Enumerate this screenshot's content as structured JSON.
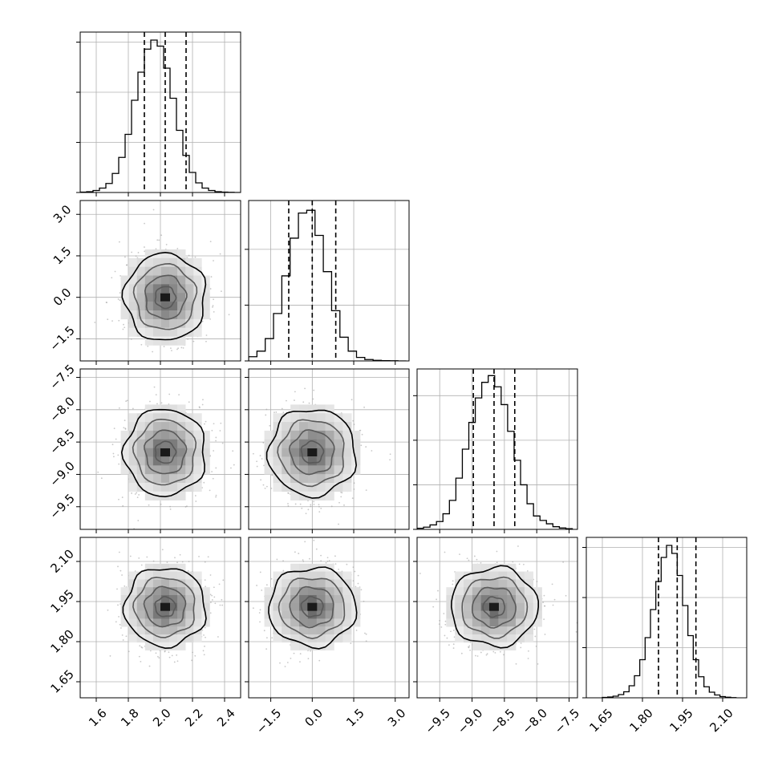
{
  "chart_data": {
    "type": "corner",
    "parameters": [
      {
        "ticks": [
          1.6,
          1.8,
          2.0,
          2.2,
          2.4
        ],
        "tick_labels": [
          "1.6",
          "1.8",
          "2.0",
          "2.2",
          "2.4"
        ],
        "range": [
          1.5,
          2.5
        ],
        "center": 2.03,
        "sigma": 0.12,
        "quantiles": [
          1.9,
          2.03,
          2.16
        ]
      },
      {
        "ticks": [
          -1.5,
          0.0,
          1.5,
          3.0
        ],
        "tick_labels": [
          "−1.5",
          "0.0",
          "1.5",
          "3.0"
        ],
        "range": [
          -2.3,
          3.5
        ],
        "center": 0.0,
        "sigma": 0.75,
        "quantiles": [
          -0.85,
          0.0,
          0.85
        ]
      },
      {
        "ticks": [
          -9.5,
          -9.0,
          -8.5,
          -8.0,
          -7.5
        ],
        "tick_labels": [
          "−9.5",
          "−9.0",
          "−8.5",
          "−8.0",
          "−7.5"
        ],
        "range": [
          -9.85,
          -7.37
        ],
        "center": -8.66,
        "sigma": 0.32,
        "quantiles": [
          -8.98,
          -8.66,
          -8.34
        ]
      },
      {
        "ticks": [
          1.65,
          1.8,
          1.95,
          2.1
        ],
        "tick_labels": [
          "1.65",
          "1.80",
          "1.95",
          "2.10"
        ],
        "range": [
          1.59,
          2.19
        ],
        "center": 1.93,
        "sigma": 0.07,
        "quantiles": [
          1.86,
          1.93,
          2.0
        ]
      }
    ],
    "histograms": [
      {
        "bin_edges": [
          1.5,
          1.54,
          1.58,
          1.62,
          1.66,
          1.7,
          1.74,
          1.78,
          1.82,
          1.86,
          1.9,
          1.94,
          1.98,
          2.02,
          2.06,
          2.1,
          2.14,
          2.18,
          2.22,
          2.26,
          2.3,
          2.34,
          2.38,
          2.42,
          2.46,
          2.5
        ],
        "counts": [
          2,
          4,
          10,
          22,
          45,
          95,
          175,
          290,
          460,
          600,
          715,
          760,
          730,
          620,
          470,
          310,
          185,
          100,
          48,
          22,
          10,
          4,
          2,
          1,
          0
        ],
        "ylim": [
          0,
          800
        ],
        "yticks": [
          0,
          250,
          500,
          750
        ]
      },
      {
        "bin_edges": [
          -2.3,
          -2.0,
          -1.7,
          -1.4,
          -1.1,
          -0.8,
          -0.5,
          -0.2,
          0.1,
          0.4,
          0.7,
          1.0,
          1.3,
          1.6,
          1.9,
          2.2,
          2.5,
          2.8,
          3.1,
          3.4
        ],
        "counts": [
          30,
          70,
          160,
          340,
          610,
          880,
          1060,
          1080,
          900,
          640,
          360,
          170,
          70,
          25,
          10,
          4,
          2,
          1,
          0
        ],
        "ylim": [
          0,
          1150
        ],
        "yticks": [
          0,
          400,
          800
        ]
      },
      {
        "bin_edges": [
          -9.85,
          -9.75,
          -9.65,
          -9.55,
          -9.45,
          -9.35,
          -9.25,
          -9.15,
          -9.05,
          -8.95,
          -8.85,
          -8.75,
          -8.65,
          -8.55,
          -8.45,
          -8.35,
          -8.25,
          -8.15,
          -8.05,
          -7.95,
          -7.85,
          -7.75,
          -7.65,
          -7.55,
          -7.45
        ],
        "counts": [
          5,
          10,
          20,
          35,
          70,
          130,
          230,
          360,
          480,
          590,
          660,
          690,
          640,
          560,
          440,
          310,
          200,
          115,
          60,
          40,
          25,
          12,
          6,
          3
        ],
        "ylim": [
          0,
          720
        ],
        "yticks": [
          0,
          200,
          400,
          600
        ]
      },
      {
        "bin_edges": [
          1.65,
          1.67,
          1.69,
          1.71,
          1.73,
          1.75,
          1.77,
          1.79,
          1.81,
          1.83,
          1.85,
          1.87,
          1.89,
          1.91,
          1.93,
          1.95,
          1.97,
          1.99,
          2.01,
          2.03,
          2.05,
          2.07,
          2.09,
          2.11,
          2.13,
          2.15
        ],
        "counts": [
          2,
          4,
          8,
          16,
          30,
          60,
          110,
          190,
          300,
          440,
          580,
          700,
          760,
          720,
          610,
          460,
          310,
          190,
          105,
          55,
          28,
          14,
          6,
          3,
          1
        ],
        "ylim": [
          0,
          800
        ],
        "yticks": [
          0,
          250,
          500,
          750
        ]
      }
    ],
    "contours": {
      "levels_sigma": [
        0.5,
        1.0,
        1.5,
        2.0
      ]
    },
    "scatter_points_per_panel": 900,
    "grid": true,
    "colors": {
      "hist": "#000000",
      "scatter": "#9a9a9a",
      "density_dark": "#1a1a1a",
      "grid": "#b0b0b0"
    }
  }
}
